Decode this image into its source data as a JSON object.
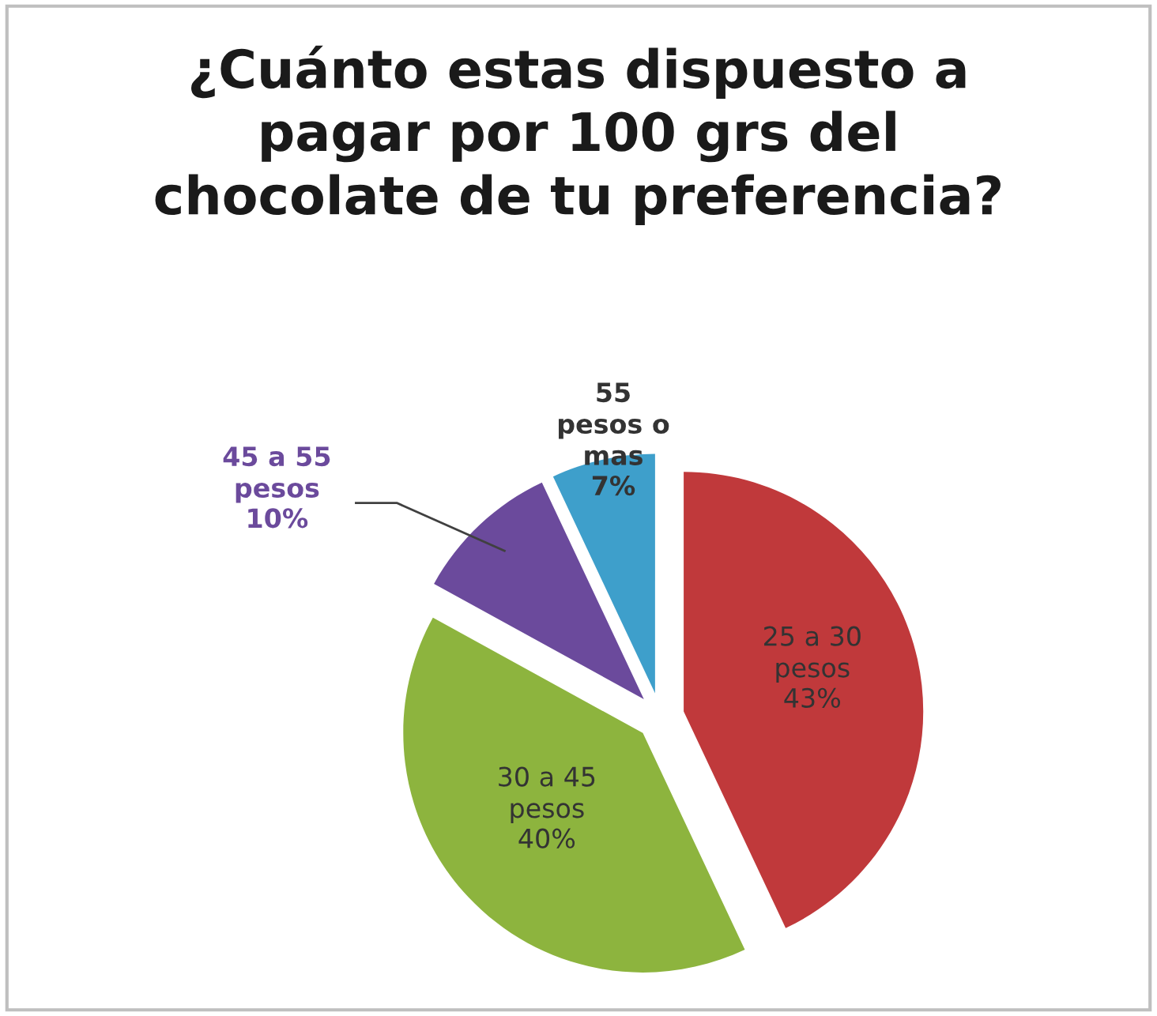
{
  "chart_data": {
    "type": "pie",
    "title": "¿Cuánto estas dispuesto a pagar por 100 grs del chocolate de tu preferencia?",
    "categories": [
      "25 a 30 pesos",
      "30 a 45 pesos",
      "45 a 55 pesos",
      "55 pesos o mas"
    ],
    "values": [
      43,
      40,
      10,
      7
    ],
    "colors": [
      "#c0393b",
      "#8db43e",
      "#6b4a9c",
      "#3e9fcb"
    ],
    "value_labels": [
      "43%",
      "40%",
      "10%",
      "7%"
    ],
    "legend": false
  }
}
